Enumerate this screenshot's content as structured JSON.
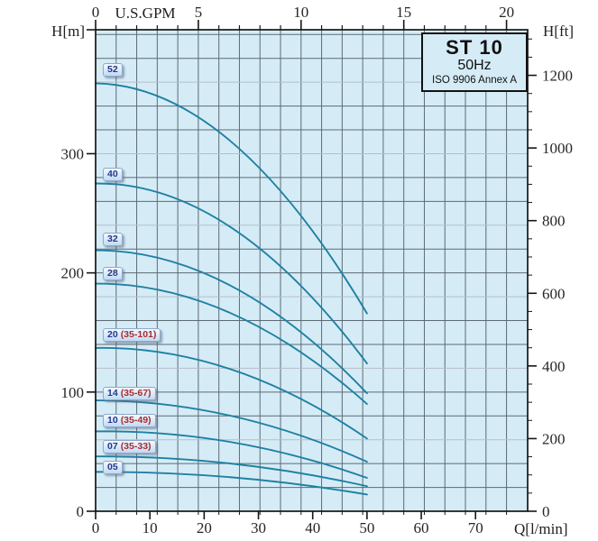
{
  "title_box": {
    "model": "ST 10",
    "frequency": "50Hz",
    "standard": "ISO 9906 Annex A"
  },
  "axis_units": {
    "top": "U.S.GPM",
    "bottom": "Q[l/min]",
    "left": "H[m]",
    "right": "H[ft]"
  },
  "colors": {
    "plot_bg": "#d5ecf7",
    "grid_dark": "#5d6a74",
    "grid_light": "#b3bfc7",
    "axis": "#161616",
    "curve": "#1f81a3",
    "tick_text": "#262626"
  },
  "chart_data": {
    "type": "line",
    "title": "ST 10 50Hz pump performance curves (ISO 9906 Annex A)",
    "xlabel": "Q[l/min]",
    "ylabel": "H[m]",
    "x_axis_bottom": {
      "label": "Q[l/min]",
      "range_lmin": [
        0,
        79.6
      ],
      "major_ticks": [
        0,
        10,
        20,
        30,
        40,
        50,
        60,
        70
      ]
    },
    "x_axis_top": {
      "label": "U.S.GPM",
      "major_ticks": [
        0,
        5,
        10,
        15,
        20
      ],
      "minor_step_gpm": 1,
      "lmin_per_gpm": 3.78541
    },
    "y_axis_left": {
      "label": "H[m]",
      "range_m": [
        0,
        404
      ],
      "major_ticks": [
        0,
        100,
        200,
        300
      ],
      "grid_step_m": 20,
      "light_line_every_m": 60
    },
    "y_axis_right": {
      "label": "H[ft]",
      "major_ticks": [
        0,
        200,
        400,
        600,
        800,
        1000,
        1200
      ],
      "minor_step_ft": 50,
      "m_per_ft": 0.3048
    },
    "grid": true,
    "legend_position": "labels-on-curves",
    "curve_label_x_lmin": 1.3,
    "curves": [
      {
        "stages": "52",
        "range_code": "",
        "points_q_lmin_h_m": [
          [
            0,
            359
          ],
          [
            25,
            310
          ],
          [
            50,
            166
          ]
        ],
        "label_H": 370
      },
      {
        "stages": "40",
        "range_code": "",
        "points_q_lmin_h_m": [
          [
            0,
            275
          ],
          [
            25,
            238
          ],
          [
            50,
            124
          ]
        ],
        "label_H": 282
      },
      {
        "stages": "32",
        "range_code": "",
        "points_q_lmin_h_m": [
          [
            0,
            219
          ],
          [
            25,
            189
          ],
          [
            50,
            99
          ]
        ],
        "label_H": 228
      },
      {
        "stages": "28",
        "range_code": "",
        "points_q_lmin_h_m": [
          [
            0,
            191
          ],
          [
            25,
            166
          ],
          [
            50,
            90
          ]
        ],
        "label_H": 199
      },
      {
        "stages": "20",
        "range_code": "(35-101)",
        "points_q_lmin_h_m": [
          [
            0,
            137
          ],
          [
            25,
            119
          ],
          [
            50,
            61
          ]
        ],
        "label_H": 147.5
      },
      {
        "stages": "14",
        "range_code": "(35-67)",
        "points_q_lmin_h_m": [
          [
            0,
            93
          ],
          [
            25,
            80
          ],
          [
            50,
            41.5
          ]
        ],
        "label_H": 98.5
      },
      {
        "stages": "10",
        "range_code": "(35-49)",
        "points_q_lmin_h_m": [
          [
            0,
            67
          ],
          [
            25,
            58
          ],
          [
            50,
            28
          ]
        ],
        "label_H": 75.5
      },
      {
        "stages": "07",
        "range_code": "(35-33)",
        "points_q_lmin_h_m": [
          [
            0,
            46
          ],
          [
            25,
            40
          ],
          [
            50,
            21
          ]
        ],
        "label_H": 53.5
      },
      {
        "stages": "05",
        "range_code": "",
        "points_q_lmin_h_m": [
          [
            0,
            33
          ],
          [
            25,
            28.5
          ],
          [
            50,
            14
          ]
        ],
        "label_H": 36.5
      }
    ]
  }
}
